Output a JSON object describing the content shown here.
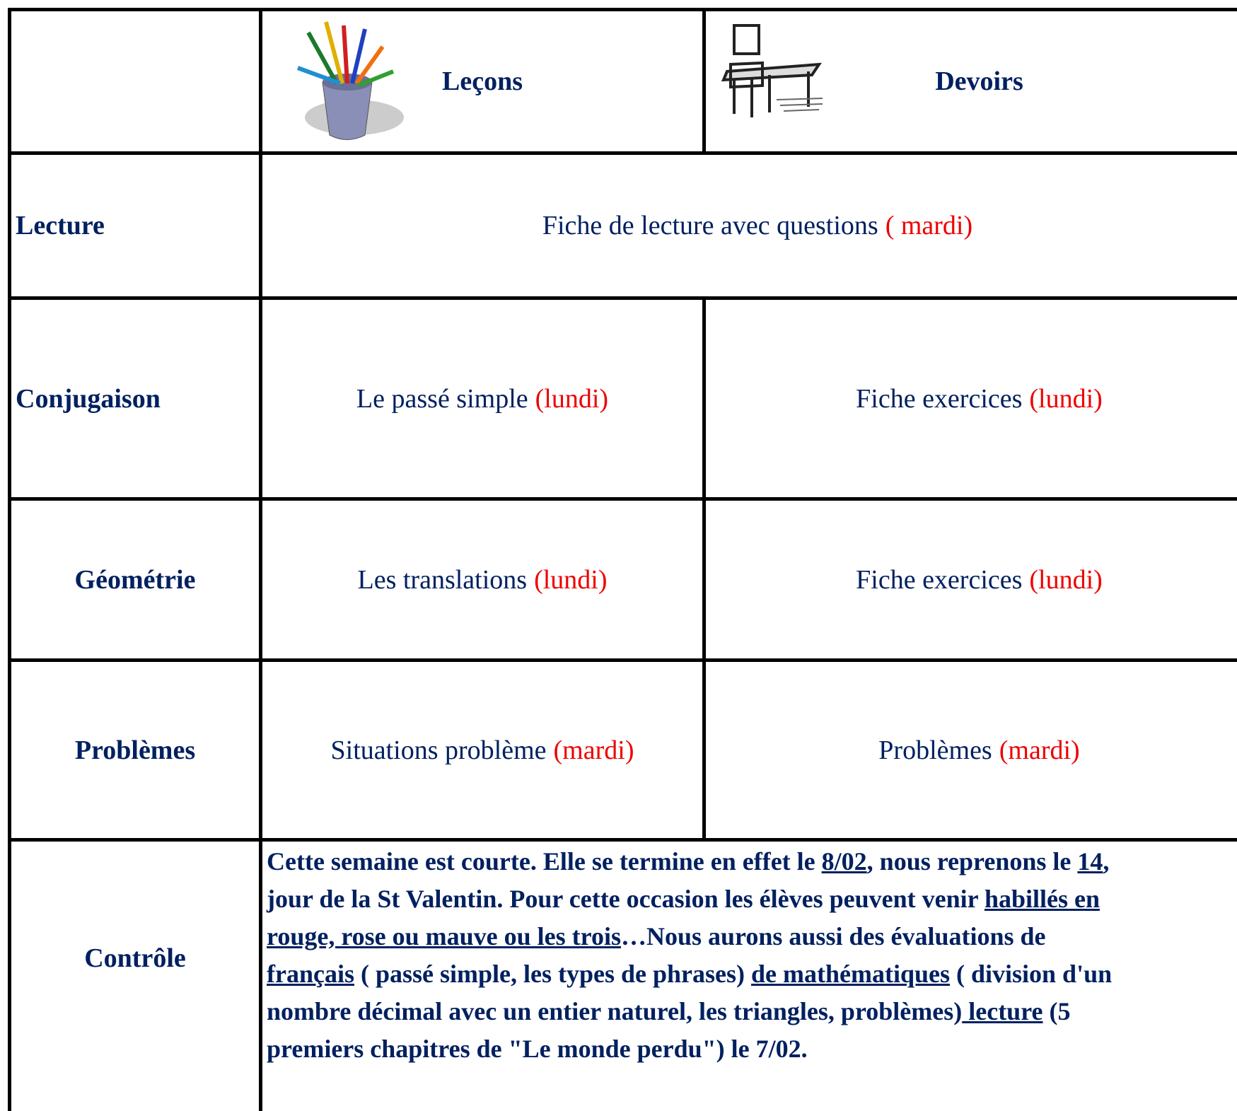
{
  "header": {
    "lessons": "Leçons",
    "homework": "Devoirs"
  },
  "rows": [
    {
      "subject": "Lecture",
      "lesson": {
        "text": "Fiche de lecture avec questions",
        "day": "( mardi)"
      }
    },
    {
      "subject": "Conjugaison",
      "lesson": {
        "text": "Le passé simple",
        "day": "(lundi)"
      },
      "homework": {
        "text": "Fiche exercices",
        "day": "(lundi)"
      }
    },
    {
      "subject": "Géométrie",
      "lesson": {
        "text": "Les translations",
        "day": "(lundi)"
      },
      "homework": {
        "text": "Fiche exercices",
        "day": "(lundi)"
      }
    },
    {
      "subject": "Problèmes",
      "lesson": {
        "text": "Situations problème",
        "day": "(mardi)"
      },
      "homework": {
        "text": "Problèmes",
        "day": "(mardi)"
      }
    }
  ],
  "control": {
    "subject": "Contrôle",
    "paragraph": [
      {
        "text": "Cette semaine est courte. Elle se termine en effet le ",
        "underlined": false
      },
      {
        "text": "8/02",
        "underlined": true
      },
      {
        "text": ", nous reprenons le ",
        "underlined": false
      },
      {
        "text": "14",
        "underlined": true
      },
      {
        "text": ", jour de la St Valentin. Pour cette occasion les élèves peuvent venir ",
        "underlined": false
      },
      {
        "text": "habillés en rouge, rose ou mauve ou les trois",
        "underlined": true
      },
      {
        "text": "…Nous aurons aussi des évaluations de",
        "underlined": false
      },
      {
        "text": " français",
        "underlined": true
      },
      {
        "text": " ( passé simple, les types de phrases) ",
        "underlined": false
      },
      {
        "text": "de mathématiques",
        "underlined": true
      },
      {
        "text": " ( division d'un nombre décimal avec un entier naturel, les triangles, problèmes)",
        "underlined": false
      },
      {
        "text": " lecture",
        "underlined": true
      },
      {
        "text": " (5 premiers chapitres de \"Le monde perdu\") le 7/02.",
        "underlined": false
      }
    ]
  }
}
